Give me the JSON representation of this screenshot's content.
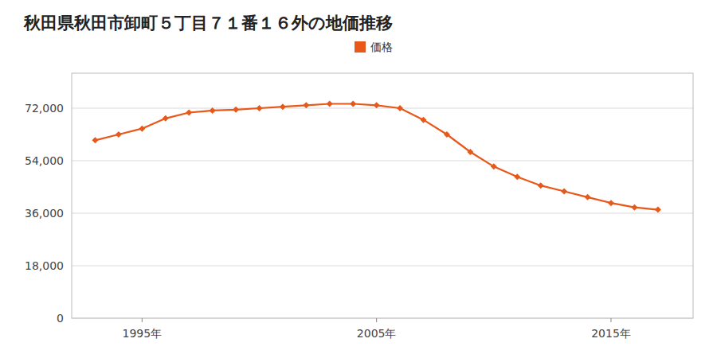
{
  "chart_data": {
    "type": "line",
    "title": "秋田県秋田市卸町５丁目７１番１６外の地価推移",
    "x": [
      1993,
      1994,
      1995,
      1996,
      1997,
      1998,
      1999,
      2000,
      2001,
      2002,
      2003,
      2004,
      2005,
      2006,
      2007,
      2008,
      2009,
      2010,
      2011,
      2012,
      2013,
      2014,
      2015,
      2016,
      2017
    ],
    "series": [
      {
        "name": "価格",
        "color": "#E8581A",
        "marker": "diamond",
        "values": [
          61000,
          63000,
          65000,
          68500,
          70500,
          71200,
          71500,
          72000,
          72500,
          73000,
          73500,
          73500,
          73000,
          72000,
          68000,
          63000,
          57000,
          52000,
          48500,
          45500,
          43500,
          41500,
          39500,
          38000,
          37200
        ]
      }
    ],
    "xlim": [
      1992.0,
      2018.5
    ],
    "xticks": [
      {
        "value": 1995,
        "label": "1995年"
      },
      {
        "value": 2005,
        "label": "2005年"
      },
      {
        "value": 2015,
        "label": "2015年"
      }
    ],
    "ylim": [
      0,
      84000
    ],
    "yticks": [
      0,
      {
        "value": 18000,
        "label": "18,000"
      },
      {
        "value": 36000,
        "label": "36,000"
      },
      {
        "value": 54000,
        "label": "54,000"
      },
      {
        "value": 72000,
        "label": "72,000"
      }
    ],
    "grid": true,
    "legend": "top"
  }
}
